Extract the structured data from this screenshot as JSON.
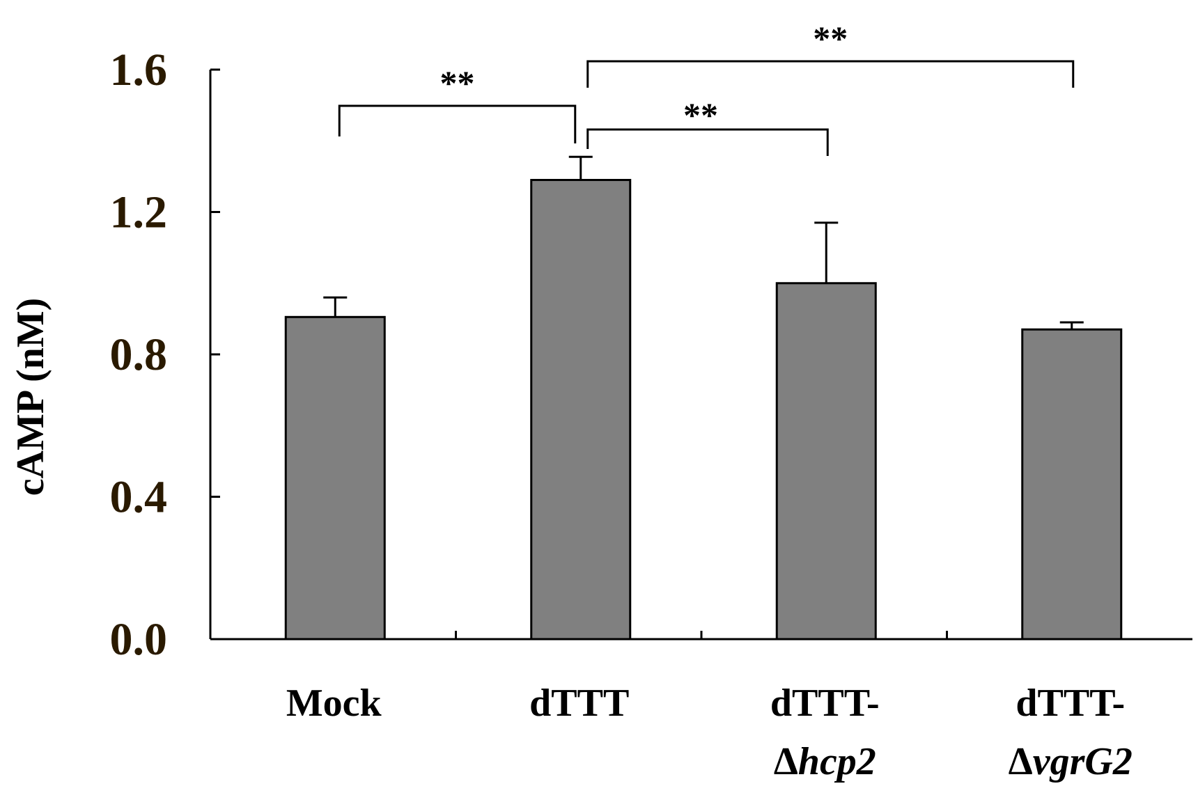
{
  "chart_data": {
    "type": "bar",
    "ylabel": "cAMP  (nM)",
    "ylim": [
      0,
      1.6
    ],
    "yticks": [
      "0.0",
      "0.4",
      "0.8",
      "1.2",
      "1.6"
    ],
    "categories": [
      {
        "line1": "Mock",
        "prefix": "",
        "italic": ""
      },
      {
        "line1": "dTTT",
        "prefix": "",
        "italic": ""
      },
      {
        "line1": "dTTT-",
        "prefix": "Δ",
        "italic": "hcp2"
      },
      {
        "line1": "dTTT-",
        "prefix": "Δ",
        "italic": "vgrG2"
      }
    ],
    "values": [
      0.905,
      1.29,
      1.0,
      0.87
    ],
    "errors": [
      0.055,
      0.065,
      0.17,
      0.02
    ],
    "significance": [
      {
        "from": 0,
        "to": 1,
        "label": "**"
      },
      {
        "from": 1,
        "to": 2,
        "label": "**"
      },
      {
        "from": 1,
        "to": 3,
        "label": "**"
      }
    ],
    "colors": {
      "bar": "#808080",
      "outline": "#000000",
      "tick_text": "#2a1a00"
    },
    "grid": false,
    "legend": "none"
  }
}
